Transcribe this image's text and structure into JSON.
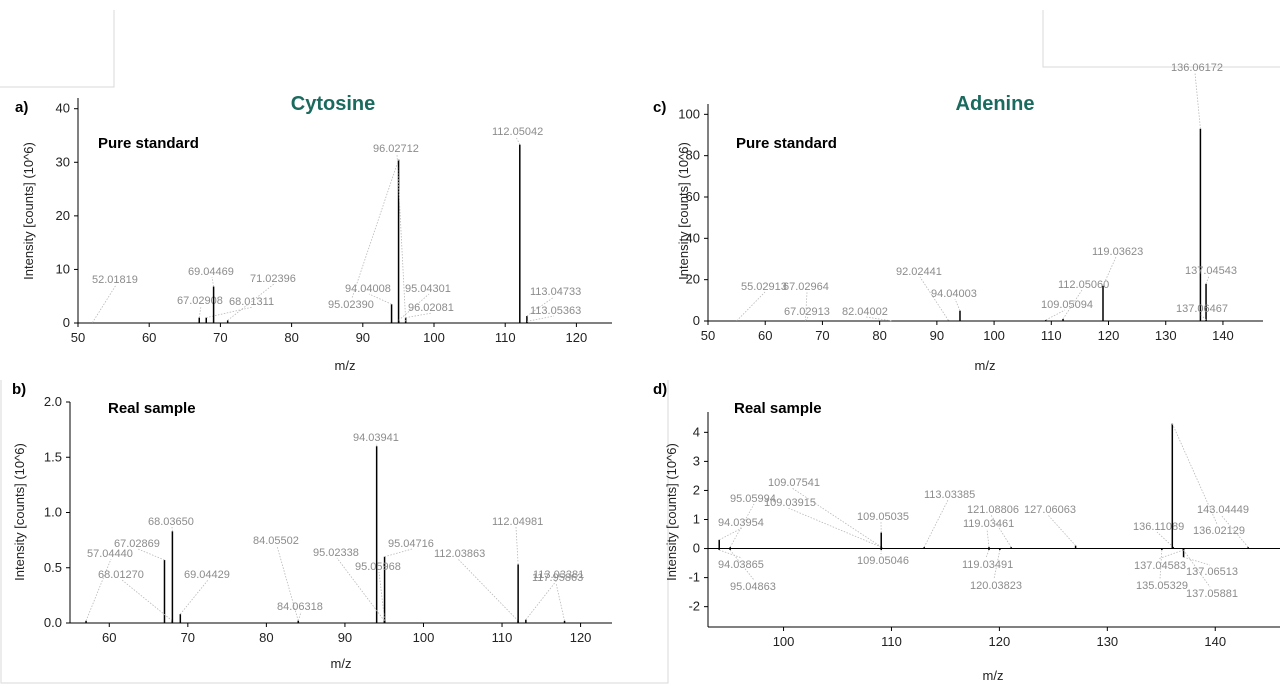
{
  "chart_data": [
    {
      "id": "a",
      "type": "bar",
      "panel_label": "a)",
      "title": "Cytosine",
      "subtitle": "Pure standard",
      "xlabel": "m/z",
      "ylabel": "Intensity [counts] (10^6)",
      "xlim": [
        50,
        125
      ],
      "ylim": [
        0,
        42
      ],
      "x_ticks": [
        50,
        60,
        70,
        80,
        90,
        100,
        110,
        120
      ],
      "y_ticks": [
        0,
        10,
        20,
        30,
        40
      ],
      "peaks": [
        {
          "x": 52.01819,
          "y": 0.05,
          "label": "52.01819"
        },
        {
          "x": 67.02908,
          "y": 1.0,
          "label": "67.02908"
        },
        {
          "x": 68.01311,
          "y": 1.0,
          "label": "68.01311"
        },
        {
          "x": 69.04469,
          "y": 6.8,
          "label": "69.04469"
        },
        {
          "x": 71.02396,
          "y": 0.5,
          "label": "71.02396"
        },
        {
          "x": 94.04008,
          "y": 3.5,
          "label": "94.04008"
        },
        {
          "x": 95.0239,
          "y": 30.5,
          "label": "95.02390"
        },
        {
          "x": 95.04301,
          "y": 0.5,
          "label": "95.04301"
        },
        {
          "x": 96.02081,
          "y": 1.0,
          "label": "96.02081"
        },
        {
          "x": 96.02712,
          "y": 0.3,
          "label": "96.02712"
        },
        {
          "x": 112.05042,
          "y": 33.3,
          "label": "112.05042"
        },
        {
          "x": 113.04733,
          "y": 1.3,
          "label": "113.04733"
        },
        {
          "x": 113.05363,
          "y": 0.3,
          "label": "113.05363"
        }
      ]
    },
    {
      "id": "b",
      "type": "bar",
      "panel_label": "b)",
      "title": "",
      "subtitle": "Real sample",
      "xlabel": "m/z",
      "ylabel": "Intensity [counts] (10^6)",
      "xlim": [
        55,
        124
      ],
      "ylim": [
        0,
        2.0
      ],
      "x_ticks": [
        60,
        70,
        80,
        90,
        100,
        110,
        120
      ],
      "y_ticks": [
        "0.0",
        "0.5",
        "1.0",
        "1.5",
        "2.0"
      ],
      "peaks": [
        {
          "x": 57.0444,
          "y": 0.02,
          "label": "57.04440"
        },
        {
          "x": 67.02869,
          "y": 0.57,
          "label": "67.02869"
        },
        {
          "x": 68.0127,
          "y": 0.02,
          "label": "68.01270"
        },
        {
          "x": 68.0365,
          "y": 0.83,
          "label": "68.03650"
        },
        {
          "x": 69.04429,
          "y": 0.08,
          "label": "69.04429"
        },
        {
          "x": 84.05502,
          "y": 0.02,
          "label": "84.05502"
        },
        {
          "x": 84.06318,
          "y": 0.02,
          "label": "84.06318"
        },
        {
          "x": 94.03941,
          "y": 1.6,
          "label": "94.03941"
        },
        {
          "x": 95.02338,
          "y": 0.02,
          "label": "95.02338"
        },
        {
          "x": 95.04716,
          "y": 0.6,
          "label": "95.04716"
        },
        {
          "x": 95.05968,
          "y": 0.02,
          "label": "95.05968"
        },
        {
          "x": 112.03863,
          "y": 0.02,
          "label": "112.03863"
        },
        {
          "x": 112.04981,
          "y": 0.53,
          "label": "112.04981"
        },
        {
          "x": 113.03381,
          "y": 0.03,
          "label": "113.03381"
        },
        {
          "x": 117.95863,
          "y": 0.02,
          "label": "117.95863"
        }
      ]
    },
    {
      "id": "c",
      "type": "bar",
      "panel_label": "c)",
      "title": "Adenine",
      "subtitle": "Pure standard",
      "xlabel": "m/z",
      "ylabel": "Intensity [counts] (10^6)",
      "xlim": [
        50,
        147
      ],
      "ylim": [
        0,
        105
      ],
      "x_ticks": [
        50,
        60,
        70,
        80,
        90,
        100,
        110,
        120,
        130,
        140
      ],
      "y_ticks": [
        0,
        20,
        40,
        60,
        80,
        100
      ],
      "peaks": [
        {
          "x": 55.02913,
          "y": 0.1,
          "label": "55.02913"
        },
        {
          "x": 67.02913,
          "y": 0.1,
          "label": "67.02913"
        },
        {
          "x": 67.02964,
          "y": 0.1,
          "label": "67.02964"
        },
        {
          "x": 82.04002,
          "y": 0.1,
          "label": "82.04002"
        },
        {
          "x": 92.02441,
          "y": 0.3,
          "label": "92.02441"
        },
        {
          "x": 94.04003,
          "y": 5,
          "label": "94.04003"
        },
        {
          "x": 109.05094,
          "y": 0.5,
          "label": "109.05094"
        },
        {
          "x": 112.0506,
          "y": 1,
          "label": "112.05060"
        },
        {
          "x": 119.03623,
          "y": 17,
          "label": "119.03623"
        },
        {
          "x": 136.06172,
          "y": 93,
          "label": "136.06172"
        },
        {
          "x": 137.04543,
          "y": 18,
          "label": "137.04543"
        },
        {
          "x": 137.06467,
          "y": 0.5,
          "label": "137.06467"
        }
      ]
    },
    {
      "id": "d",
      "type": "bar",
      "panel_label": "d)",
      "title": "",
      "subtitle": "Real sample",
      "xlabel": "m/z",
      "ylabel": "Intensity [counts] (10^6)",
      "xlim": [
        93,
        146
      ],
      "ylim": [
        -2.7,
        4.7
      ],
      "x_ticks": [
        100,
        110,
        120,
        130,
        140
      ],
      "y_ticks": [
        -2,
        -1,
        0,
        1,
        2,
        3,
        4
      ],
      "peaks": [
        {
          "x": 94.03954,
          "y": 0.3,
          "label": "94.03954"
        },
        {
          "x": 94.03865,
          "y": -0.05,
          "label": "94.03865"
        },
        {
          "x": 95.04863,
          "y": -0.05,
          "label": "95.04863"
        },
        {
          "x": 95.05994,
          "y": 0.05,
          "label": "95.05994"
        },
        {
          "x": 109.03915,
          "y": 0.05,
          "label": "109.03915"
        },
        {
          "x": 109.07541,
          "y": 0.05,
          "label": "109.07541"
        },
        {
          "x": 109.05035,
          "y": 0.55,
          "label": "109.05035"
        },
        {
          "x": 109.05046,
          "y": -0.05,
          "label": "109.05046"
        },
        {
          "x": 113.03385,
          "y": 0.05,
          "label": "113.03385"
        },
        {
          "x": 119.03461,
          "y": 0.05,
          "label": "119.03461"
        },
        {
          "x": 119.03491,
          "y": -0.05,
          "label": "119.03491"
        },
        {
          "x": 120.03823,
          "y": -0.05,
          "label": "120.03823"
        },
        {
          "x": 121.08806,
          "y": 0.05,
          "label": "121.08806"
        },
        {
          "x": 127.06063,
          "y": 0.1,
          "label": "127.06063"
        },
        {
          "x": 136.11089,
          "y": 0.05,
          "label": "136.11089"
        },
        {
          "x": 136.02129,
          "y": 4.3,
          "label": "136.02129"
        },
        {
          "x": 137.04583,
          "y": -0.05,
          "label": "137.04583"
        },
        {
          "x": 135.05329,
          "y": -0.05,
          "label": "135.05329"
        },
        {
          "x": 137.06513,
          "y": -0.3,
          "label": "137.06513"
        },
        {
          "x": 137.05881,
          "y": -0.05,
          "label": "137.05881"
        },
        {
          "x": 143.04449,
          "y": 0.05,
          "label": "143.04449"
        }
      ]
    }
  ]
}
